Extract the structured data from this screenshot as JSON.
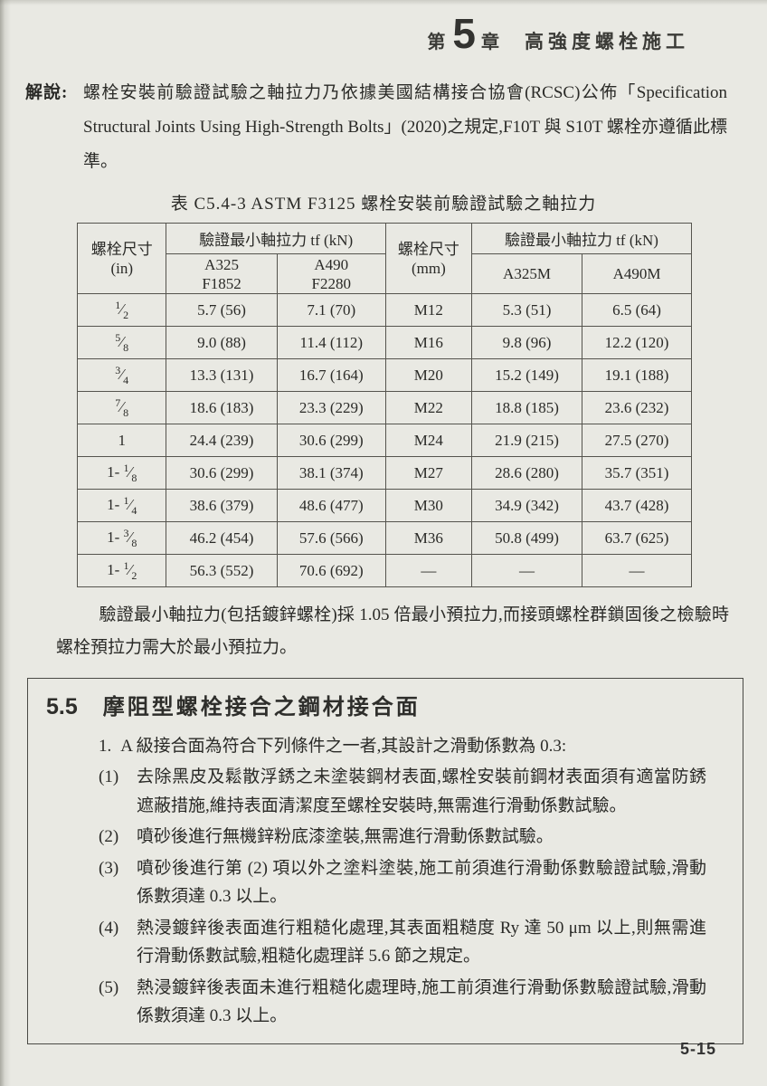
{
  "colors": {
    "page_bg": "#e9e9e3",
    "ink": "#2a2a27",
    "table_border": "#55544e"
  },
  "page": {
    "chapter_prefix": "第",
    "chapter_number": "5",
    "chapter_suffix": "章",
    "chapter_title": "高強度螺栓施工",
    "page_number": "5-15"
  },
  "commentary": {
    "label": "解說:",
    "text": "螺栓安裝前驗證試驗之軸拉力乃依據美國結構接合協會(RCSC)公佈「Specification Structural Joints Using High-Strength Bolts」(2020)之規定,F10T 與 S10T 螺栓亦遵循此標準。"
  },
  "table": {
    "title": "表 C5.4-3 ASTM F3125 螺栓安裝前驗證試驗之軸拉力",
    "header": {
      "size_in_line1": "螺栓尺寸",
      "size_in_line2": "(in)",
      "group_left": "驗證最小軸拉力 tf (kN)",
      "a325_line1": "A325",
      "a325_line2": "F1852",
      "a490_line1": "A490",
      "a490_line2": "F2280",
      "size_mm_line1": "螺栓尺寸",
      "size_mm_line2": "(mm)",
      "group_right": "驗證最小軸拉力 tf (kN)",
      "a325m": "A325M",
      "a490m": "A490M"
    },
    "rows": [
      {
        "size": {
          "pre": "",
          "num": "1",
          "den": "2"
        },
        "a325": "5.7 (56)",
        "a490": "7.1 (70)",
        "mm": "M12",
        "a325m": "5.3 (51)",
        "a490m": "6.5 (64)"
      },
      {
        "size": {
          "pre": "",
          "num": "5",
          "den": "8"
        },
        "a325": "9.0 (88)",
        "a490": "11.4 (112)",
        "mm": "M16",
        "a325m": "9.8 (96)",
        "a490m": "12.2 (120)"
      },
      {
        "size": {
          "pre": "",
          "num": "3",
          "den": "4"
        },
        "a325": "13.3 (131)",
        "a490": "16.7 (164)",
        "mm": "M20",
        "a325m": "15.2 (149)",
        "a490m": "19.1 (188)"
      },
      {
        "size": {
          "pre": "",
          "num": "7",
          "den": "8"
        },
        "a325": "18.6 (183)",
        "a490": "23.3 (229)",
        "mm": "M22",
        "a325m": "18.8 (185)",
        "a490m": "23.6 (232)"
      },
      {
        "size": {
          "pre": "1",
          "num": "",
          "den": ""
        },
        "a325": "24.4 (239)",
        "a490": "30.6 (299)",
        "mm": "M24",
        "a325m": "21.9 (215)",
        "a490m": "27.5 (270)"
      },
      {
        "size": {
          "pre": "1-",
          "num": "1",
          "den": "8"
        },
        "a325": "30.6 (299)",
        "a490": "38.1 (374)",
        "mm": "M27",
        "a325m": "28.6 (280)",
        "a490m": "35.7 (351)"
      },
      {
        "size": {
          "pre": "1-",
          "num": "1",
          "den": "4"
        },
        "a325": "38.6 (379)",
        "a490": "48.6 (477)",
        "mm": "M30",
        "a325m": "34.9 (342)",
        "a490m": "43.7 (428)"
      },
      {
        "size": {
          "pre": "1-",
          "num": "3",
          "den": "8"
        },
        "a325": "46.2 (454)",
        "a490": "57.6 (566)",
        "mm": "M36",
        "a325m": "50.8 (499)",
        "a490m": "63.7 (625)"
      },
      {
        "size": {
          "pre": "1-",
          "num": "1",
          "den": "2"
        },
        "a325": "56.3 (552)",
        "a490": "70.6 (692)",
        "mm": "—",
        "a325m": "—",
        "a490m": "—"
      }
    ]
  },
  "note": {
    "text": "驗證最小軸拉力(包括鍍鋅螺栓)採 1.05 倍最小預拉力,而接頭螺栓群鎖固後之檢驗時螺栓預拉力需大於最小預拉力。"
  },
  "section": {
    "number": "5.5",
    "title": "摩阻型螺栓接合之鋼材接合面",
    "item1_marker": "1.",
    "item1_text": "A 級接合面為符合下列條件之一者,其設計之滑動係數為 0.3:",
    "subitems": [
      {
        "marker": "(1)",
        "text": "去除黑皮及鬆散浮銹之未塗裝鋼材表面,螺栓安裝前鋼材表面須有適當防銹遮蔽措施,維持表面清潔度至螺栓安裝時,無需進行滑動係數試驗。"
      },
      {
        "marker": "(2)",
        "text": "噴砂後進行無機鋅粉底漆塗裝,無需進行滑動係數試驗。"
      },
      {
        "marker": "(3)",
        "text": "噴砂後進行第 (2) 項以外之塗料塗裝,施工前須進行滑動係數驗證試驗,滑動係數須達 0.3 以上。"
      },
      {
        "marker": "(4)",
        "text": "熱浸鍍鋅後表面進行粗糙化處理,其表面粗糙度 Ry 達 50 μm 以上,則無需進行滑動係數試驗,粗糙化處理詳 5.6 節之規定。"
      },
      {
        "marker": "(5)",
        "text": "熱浸鍍鋅後表面未進行粗糙化處理時,施工前須進行滑動係數驗證試驗,滑動係數須達 0.3 以上。"
      }
    ]
  }
}
